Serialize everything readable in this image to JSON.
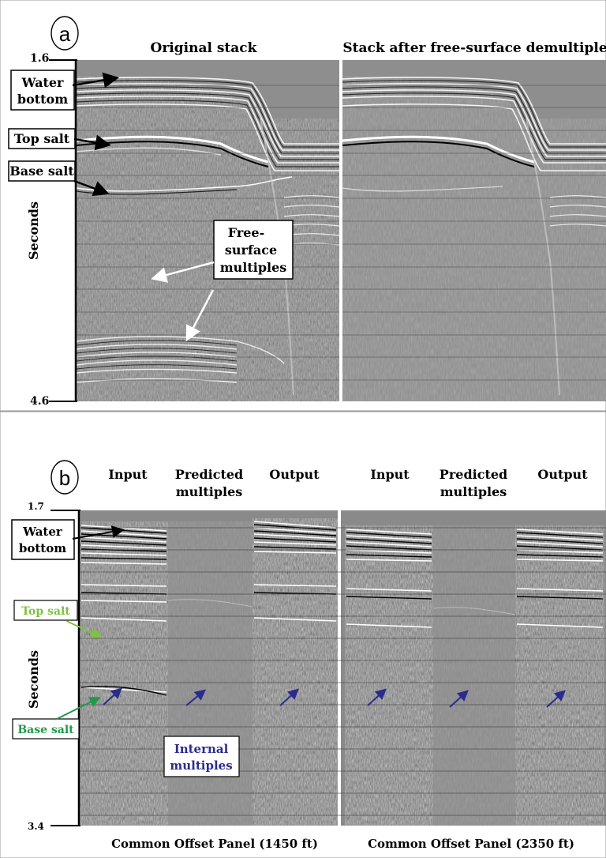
{
  "panel_a": {
    "label": "a",
    "title_left": "Original stack",
    "title_right": "Stack after free-surface demultiple",
    "y_axis_label": "Seconds",
    "y_top": "1.6",
    "y_bottom": "4.6",
    "callouts": {
      "water_bottom_line1": "Water",
      "water_bottom_line2": "bottom",
      "top_salt": "Top salt",
      "base_salt": "Base salt",
      "free_surface_line1": "Free-",
      "free_surface_line2": "surface",
      "free_surface_line3": "multiples"
    }
  },
  "panel_b": {
    "label": "b",
    "columns": {
      "input_1": "Input",
      "predicted_1_line1": "Predicted",
      "predicted_1_line2": "multiples",
      "output_1": "Output",
      "input_2": "Input",
      "predicted_2_line1": "Predicted",
      "predicted_2_line2": "multiples",
      "output_2": "Output"
    },
    "y_axis_label": "Seconds",
    "y_top": "1.7",
    "y_bottom": "3.4",
    "callouts": {
      "water_bottom_line1": "Water",
      "water_bottom_line2": "bottom",
      "top_salt": "Top salt",
      "base_salt": "Base salt",
      "internal_line1": "Internal",
      "internal_line2": "multiples"
    },
    "footer_left": "Common Offset Panel (1450 ft)",
    "footer_right": "Common Offset Panel (2350 ft)"
  },
  "colors": {
    "seismic_gray": "#8c8c8c",
    "top_salt_green": "#7dc242",
    "base_salt_green": "#1e9a4a",
    "internal_blue": "#2b2b8f"
  }
}
